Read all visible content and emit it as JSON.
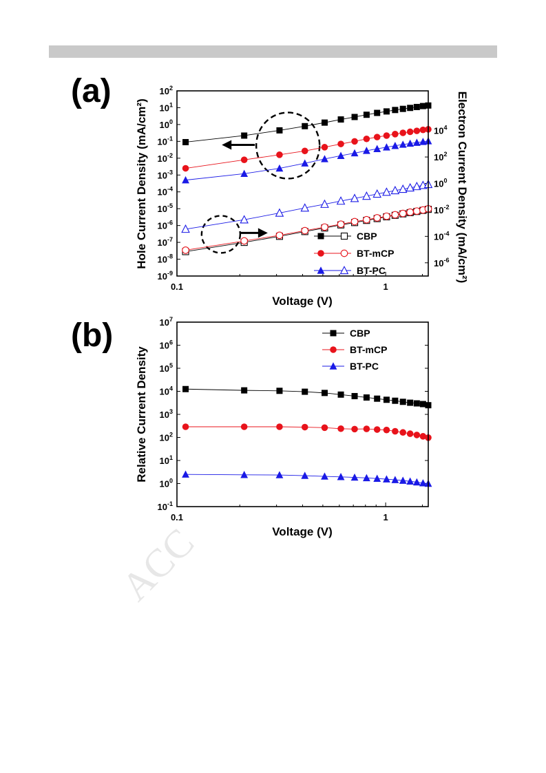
{
  "watermark": "ACC",
  "chart_data": [
    {
      "panel_label": "(a)",
      "type": "scatter",
      "xscale": "log",
      "yscale": "log",
      "xlabel": "Voltage (V)",
      "ylabel": "Hole Current Density (mA/cm²)",
      "ylabel_right": "Electron Current Density (mA/cm²)",
      "xlim": [
        0.1,
        1.6
      ],
      "ylim": [
        1e-09,
        100
      ],
      "ylim_right": [
        1e-07,
        10000000.0
      ],
      "x_ticks": [
        "0.1",
        "1"
      ],
      "y_ticks": [
        "10-9",
        "10-8",
        "10-7",
        "10-6",
        "10-5",
        "10-4",
        "10-3",
        "10-2",
        "10-1",
        "100",
        "101",
        "102"
      ],
      "y_ticks_right": [
        "10-6",
        "10-4",
        "10-2",
        "100",
        "102",
        "104"
      ],
      "legend": [
        "CBP",
        "BT-mCP",
        "BT-PC"
      ],
      "legend_position": "bottom-right",
      "x": [
        0.11,
        0.21,
        0.31,
        0.41,
        0.51,
        0.61,
        0.71,
        0.81,
        0.91,
        1.01,
        1.11,
        1.21,
        1.31,
        1.41,
        1.51,
        1.6
      ],
      "series": [
        {
          "name": "CBP",
          "marker": "square",
          "filled": true,
          "axis": "left",
          "color": "#000000",
          "values": [
            0.09,
            0.22,
            0.45,
            0.8,
            1.3,
            2.0,
            2.8,
            3.8,
            4.9,
            6.0,
            7.3,
            8.5,
            9.7,
            11.0,
            12.5,
            13.5
          ]
        },
        {
          "name": "BT-mCP",
          "marker": "circle",
          "filled": true,
          "axis": "left",
          "color": "#e8131b",
          "values": [
            0.0025,
            0.008,
            0.016,
            0.027,
            0.045,
            0.07,
            0.1,
            0.14,
            0.18,
            0.22,
            0.27,
            0.32,
            0.37,
            0.42,
            0.48,
            0.52
          ]
        },
        {
          "name": "BT-PC",
          "marker": "triangle",
          "filled": true,
          "axis": "left",
          "color": "#1a1ae6",
          "values": [
            0.0005,
            0.0012,
            0.0025,
            0.005,
            0.009,
            0.014,
            0.02,
            0.028,
            0.036,
            0.045,
            0.055,
            0.065,
            0.075,
            0.085,
            0.095,
            0.105
          ]
        },
        {
          "name": "CBP",
          "marker": "square",
          "filled": false,
          "axis": "right",
          "color": "#000000",
          "values": [
            7e-06,
            3.5e-05,
            0.0001,
            0.00023,
            0.00043,
            0.00073,
            0.0011,
            0.0016,
            0.0022,
            0.003,
            0.0039,
            0.005,
            0.0062,
            0.0076,
            0.0092,
            0.011
          ]
        },
        {
          "name": "BT-mCP",
          "marker": "circle",
          "filled": false,
          "axis": "right",
          "color": "#e8131b",
          "values": [
            9e-06,
            4.5e-05,
            0.00012,
            0.00027,
            0.0005,
            0.00083,
            0.0013,
            0.0018,
            0.0025,
            0.0033,
            0.0043,
            0.0054,
            0.0067,
            0.0081,
            0.0098,
            0.012
          ]
        },
        {
          "name": "BT-PC",
          "marker": "triangle",
          "filled": false,
          "axis": "right",
          "color": "#1a1ae6",
          "values": [
            0.00035,
            0.0018,
            0.0058,
            0.014,
            0.027,
            0.047,
            0.074,
            0.11,
            0.16,
            0.22,
            0.29,
            0.37,
            0.47,
            0.59,
            0.72,
            0.85
          ]
        }
      ],
      "annotations": [
        {
          "type": "dashed-circle",
          "center": [
            0.33,
            0.09
          ],
          "points_to": "left-axis"
        },
        {
          "type": "dashed-circle",
          "center": [
            0.16,
            3e-07
          ],
          "points_to": "right-axis"
        }
      ]
    },
    {
      "panel_label": "(b)",
      "type": "scatter",
      "xscale": "log",
      "yscale": "log",
      "xlabel": "Voltage (V)",
      "ylabel": "Relative Current Density",
      "xlim": [
        0.1,
        1.6
      ],
      "ylim": [
        0.1,
        10000000.0
      ],
      "x_ticks": [
        "0.1",
        "1"
      ],
      "y_ticks": [
        "10-1",
        "100",
        "101",
        "102",
        "103",
        "104",
        "105",
        "106",
        "107"
      ],
      "legend": [
        "CBP",
        "BT-mCP",
        "BT-PC"
      ],
      "legend_position": "top-right",
      "x": [
        0.11,
        0.21,
        0.31,
        0.41,
        0.51,
        0.61,
        0.71,
        0.81,
        0.91,
        1.01,
        1.11,
        1.21,
        1.31,
        1.41,
        1.51,
        1.6
      ],
      "series": [
        {
          "name": "CBP",
          "marker": "square",
          "filled": true,
          "color": "#000000",
          "values": [
            12500,
            11000,
            10500,
            9600,
            8500,
            7200,
            6200,
            5400,
            4800,
            4300,
            3900,
            3500,
            3200,
            3000,
            2800,
            2500
          ]
        },
        {
          "name": "BT-mCP",
          "marker": "circle",
          "filled": true,
          "color": "#e8131b",
          "values": [
            290,
            290,
            290,
            280,
            265,
            240,
            230,
            235,
            220,
            210,
            185,
            165,
            145,
            128,
            112,
            98
          ]
        },
        {
          "name": "BT-PC",
          "marker": "triangle",
          "filled": true,
          "color": "#1a1ae6",
          "values": [
            2.5,
            2.4,
            2.35,
            2.2,
            2.05,
            1.95,
            1.85,
            1.75,
            1.65,
            1.55,
            1.45,
            1.35,
            1.25,
            1.15,
            1.05,
            1.0
          ]
        }
      ]
    }
  ]
}
